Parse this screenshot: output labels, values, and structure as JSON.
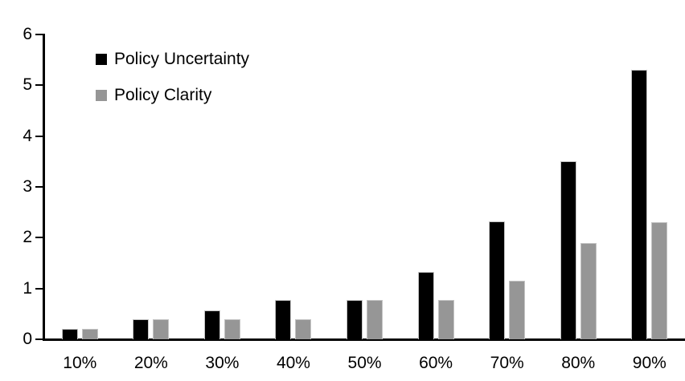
{
  "chart_data": {
    "type": "bar",
    "title": "",
    "xlabel": "",
    "ylabel": "",
    "categories": [
      "10%",
      "20%",
      "30%",
      "40%",
      "50%",
      "60%",
      "70%",
      "80%",
      "90%"
    ],
    "series": [
      {
        "name": "Policy Uncertainty",
        "color": "#000000",
        "values": [
          0.2,
          0.4,
          0.57,
          0.77,
          0.78,
          1.33,
          2.32,
          3.5,
          5.3
        ]
      },
      {
        "name": "Policy Clarity",
        "color": "#969696",
        "values": [
          0.2,
          0.39,
          0.39,
          0.4,
          0.77,
          0.77,
          1.15,
          1.9,
          2.3
        ]
      }
    ],
    "ylim": [
      0,
      6
    ],
    "yticks": [
      0,
      1,
      2,
      3,
      4,
      5,
      6
    ],
    "grid": false,
    "legend_position": "top-left-inside",
    "axis_color": "#000000",
    "bar_border_color": "#c4c4c4",
    "background": "#ffffff"
  }
}
